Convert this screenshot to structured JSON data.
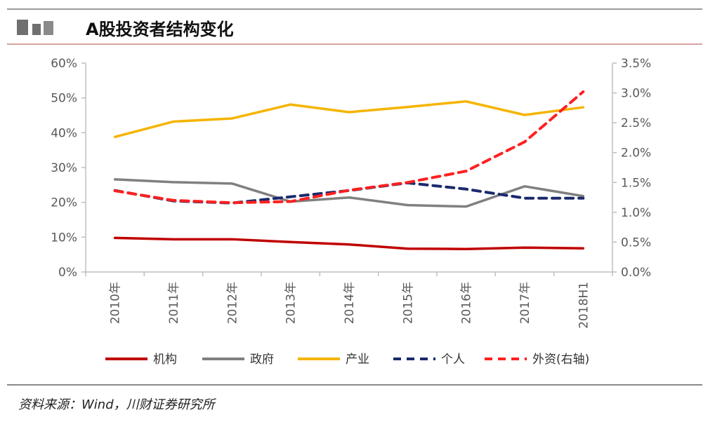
{
  "header": {
    "title": "A股投资者结构变化",
    "colors": {
      "top_line": "#9a9a9a",
      "bottom_line": "#d8a0a0"
    }
  },
  "footer": {
    "source": "资料来源：Wind，川财证券研究所"
  },
  "chart_data": {
    "type": "line",
    "title": "",
    "categories": [
      "2010年",
      "2011年",
      "2012年",
      "2013年",
      "2014年",
      "2015年",
      "2016年",
      "2017年",
      "2018H1"
    ],
    "y_left": {
      "min": 0,
      "max": 60,
      "step": 10,
      "ticks": [
        "0%",
        "10%",
        "20%",
        "30%",
        "40%",
        "50%",
        "60%"
      ]
    },
    "y_right": {
      "min": 0,
      "max": 3.5,
      "step": 0.5,
      "ticks": [
        "0.0%",
        "0.5%",
        "1.0%",
        "1.5%",
        "2.0%",
        "2.5%",
        "3.0%",
        "3.5%"
      ]
    },
    "grid": false,
    "legend_position": "bottom",
    "series": [
      {
        "name": "机构",
        "axis": "left",
        "style": "solid",
        "color": "#c00000",
        "values": [
          9.8,
          9.4,
          9.4,
          8.6,
          7.9,
          6.7,
          6.6,
          7.0,
          6.8
        ]
      },
      {
        "name": "政府",
        "axis": "left",
        "style": "solid",
        "color": "#808080",
        "values": [
          26.6,
          25.8,
          25.4,
          20.2,
          21.4,
          19.2,
          18.8,
          24.6,
          21.8
        ]
      },
      {
        "name": "产业",
        "axis": "left",
        "style": "solid",
        "color": "#f5b400",
        "values": [
          38.8,
          43.2,
          44.1,
          48.1,
          45.9,
          47.4,
          49.0,
          45.1,
          47.3
        ]
      },
      {
        "name": "个人",
        "axis": "left",
        "style": "dashed",
        "color": "#1a2a6c",
        "values": [
          23.4,
          20.4,
          19.8,
          21.6,
          23.4,
          25.6,
          23.8,
          21.2,
          21.2
        ]
      },
      {
        "name": "外资(右轴)",
        "axis": "right",
        "style": "dashed",
        "color": "#ff2020",
        "values": [
          1.36,
          1.2,
          1.16,
          1.18,
          1.37,
          1.5,
          1.69,
          2.18,
          3.02
        ]
      }
    ]
  }
}
